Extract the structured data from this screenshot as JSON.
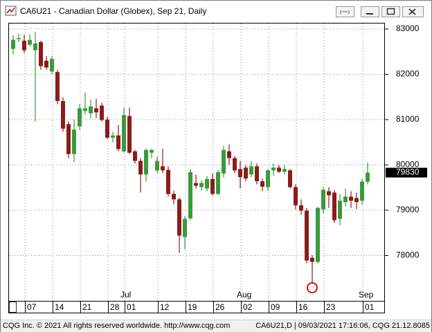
{
  "window": {
    "title": "CA6U21 - Canadian Dollar (Globex), Sep 21, Daily"
  },
  "footer": {
    "left": "CQG Inc. © 2021 All rights reserved worldwide. http://www.cqg.com",
    "right": "CA6U21,D | 09/03/2021 17:16:06, CQG 21.12.8085"
  },
  "chart_data": {
    "type": "candlestick",
    "up_color": "#3a9a3a",
    "down_color": "#8b1c1c",
    "grid": true,
    "ylim": [
      77000,
      83120
    ],
    "yticks": [
      78000,
      79000,
      80000,
      81000,
      82000,
      83000
    ],
    "categories": [
      null,
      "07",
      null,
      null,
      null,
      null,
      "14",
      null,
      null,
      null,
      null,
      "21",
      null,
      null,
      null,
      null,
      "28",
      null,
      null,
      "01",
      null,
      null,
      null,
      null,
      null,
      "12",
      null,
      null,
      null,
      null,
      "19",
      null,
      null,
      null,
      null,
      "26",
      null,
      null,
      null,
      null,
      "02",
      null,
      null,
      null,
      null,
      "09",
      null,
      null,
      null,
      null,
      "16",
      null,
      null,
      null,
      null,
      "23",
      null,
      null,
      null,
      null,
      null,
      null,
      "01",
      null,
      null
    ],
    "month_labels": [
      null,
      null,
      null,
      null,
      null,
      null,
      null,
      null,
      null,
      null,
      null,
      null,
      null,
      null,
      null,
      null,
      null,
      null,
      null,
      "Jul",
      null,
      null,
      null,
      null,
      null,
      null,
      null,
      null,
      null,
      null,
      null,
      null,
      null,
      null,
      null,
      null,
      null,
      null,
      null,
      null,
      "Aug",
      null,
      null,
      null,
      null,
      null,
      null,
      null,
      null,
      null,
      null,
      null,
      null,
      null,
      null,
      null,
      null,
      null,
      null,
      null,
      null,
      null,
      "Sep",
      null,
      null
    ],
    "open": [
      82560,
      82780,
      82740,
      82650,
      82530,
      82710,
      82300,
      82060,
      82050,
      81410,
      80900,
      80240,
      80850,
      81190,
      81140,
      81250,
      81310,
      81000,
      80600,
      80650,
      80300,
      81080,
      80300,
      80090,
      79790,
      80270,
      79880,
      79970,
      79890,
      79360,
      79240,
      78410,
      78820,
      79600,
      79510,
      79480,
      79690,
      79360,
      79810,
      80300,
      80150,
      79910,
      79940,
      79790,
      79970,
      79640,
      79510,
      79880,
      79940,
      79850,
      79880,
      79510,
      79110,
      78990,
      77950,
      77860,
      79020,
      79420,
      79390,
      78810,
      79180,
      79300,
      79270,
      79210,
      79630
    ],
    "high": [
      82860,
      82890,
      82870,
      82880,
      82940,
      82740,
      82400,
      82400,
      82100,
      81490,
      80960,
      81000,
      81340,
      81600,
      81440,
      81460,
      81370,
      81060,
      80730,
      80880,
      81260,
      81260,
      80330,
      80150,
      80360,
      80360,
      80180,
      80360,
      79970,
      79430,
      79280,
      78870,
      79910,
      79790,
      79660,
      79750,
      79810,
      79890,
      80420,
      80450,
      80200,
      80090,
      80000,
      80090,
      80030,
      79700,
      79910,
      80030,
      80000,
      80000,
      79910,
      79570,
      79240,
      79050,
      78010,
      79080,
      79510,
      79510,
      79450,
      79360,
      79480,
      79420,
      79390,
      79690,
      80050
    ],
    "low": [
      82440,
      82710,
      82470,
      82620,
      80960,
      82100,
      82100,
      82000,
      81340,
      80730,
      80150,
      80060,
      80770,
      81110,
      81030,
      81030,
      80960,
      80570,
      80500,
      80300,
      80270,
      80240,
      80030,
      79390,
      79630,
      80150,
      79820,
      79820,
      79300,
      79130,
      78060,
      78140,
      78780,
      79480,
      79430,
      79420,
      79330,
      79330,
      79720,
      80000,
      79820,
      79480,
      79640,
      79730,
      79570,
      79420,
      79420,
      79760,
      79820,
      79790,
      79480,
      79020,
      78900,
      77830,
      77380,
      77830,
      78930,
      79050,
      78720,
      78670,
      79090,
      79050,
      79020,
      79120,
      79570
    ],
    "close": [
      82760,
      82800,
      82530,
      82760,
      82680,
      82180,
      82150,
      82340,
      81410,
      80800,
      80240,
      80780,
      81250,
      81250,
      81290,
      81160,
      80990,
      80600,
      80650,
      80350,
      81100,
      80270,
      80090,
      79790,
      80330,
      80330,
      80090,
      79880,
      79360,
      79240,
      78440,
      78810,
      79840,
      79540,
      79600,
      79690,
      79360,
      79840,
      80330,
      80150,
      79880,
      79730,
      79700,
      79970,
      79640,
      79520,
      79880,
      79940,
      79850,
      79910,
      79510,
      79110,
      78990,
      77890,
      77860,
      79050,
      79450,
      79330,
      78780,
      79210,
      79300,
      79210,
      79180,
      79630,
      79830
    ]
  }
}
